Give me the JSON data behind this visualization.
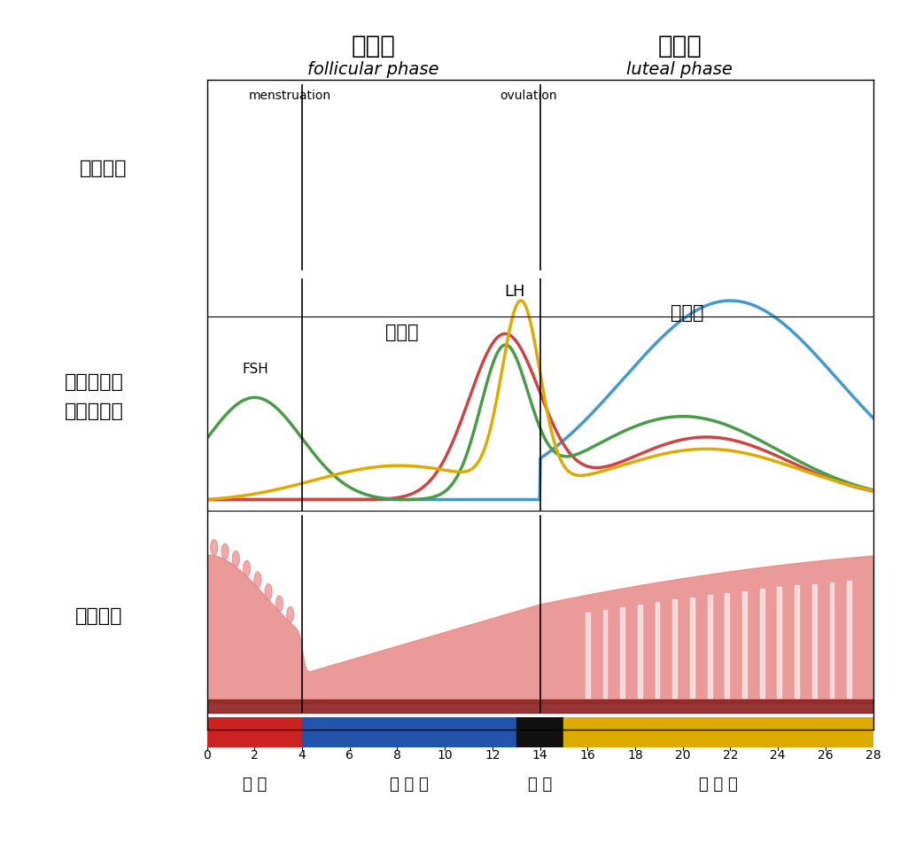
{
  "title_top_left": "濾泡期",
  "title_top_left_sub": "follicular phase",
  "title_top_right": "黃體期",
  "title_top_right_sub": "luteal phase",
  "label_follicle": "濾泡生長",
  "label_hormone": "腦下垂體及\n卵巢賀爾蒙",
  "label_endometrium": "內膜週期",
  "annotation_menstruation": "menstruation",
  "annotation_ovulation": "ovulation",
  "annotation_FSH": "FSH",
  "annotation_LH": "LH",
  "annotation_estrogen": "雌激素",
  "annotation_progesterone": "黃體素",
  "xmin": 0,
  "xmax": 28,
  "xticks": [
    0,
    2,
    4,
    6,
    8,
    10,
    12,
    14,
    16,
    18,
    20,
    22,
    24,
    26,
    28
  ],
  "phase_bar": [
    {
      "label": "月 經",
      "xstart": 0,
      "xend": 4,
      "color": "#cc2222"
    },
    {
      "label": "濾 泡 期",
      "xstart": 4,
      "xend": 13,
      "color": "#2255aa"
    },
    {
      "label": "排 卵",
      "xstart": 13,
      "xend": 15,
      "color": "#111111"
    },
    {
      "label": "黃 體 期",
      "xstart": 15,
      "xend": 28,
      "color": "#ddaa00"
    }
  ],
  "line_colors": {
    "FSH": "#4a9a4a",
    "LH": "#ddaa00",
    "estrogen": "#cc4444",
    "progesterone": "#4499cc"
  },
  "bg_color": "#ffffff",
  "plot_bg": "#ffffff",
  "endometrium_color": "#e88888",
  "endometrium_dark": "#8b2020"
}
